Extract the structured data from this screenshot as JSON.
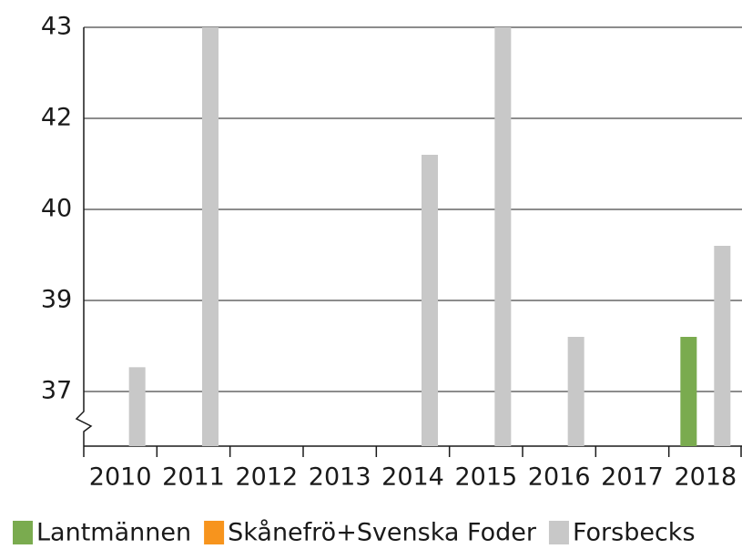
{
  "chart_data": {
    "type": "bar",
    "categories": [
      "2010",
      "2011",
      "2012",
      "2013",
      "2014",
      "2015",
      "2016",
      "2017",
      "2018"
    ],
    "series": [
      {
        "name": "Lantmännen",
        "color": "#7aab4f",
        "values": [
          null,
          null,
          null,
          null,
          null,
          null,
          null,
          null,
          37.9
        ]
      },
      {
        "name": "Skånefrö+Svenska Foder",
        "color": "#f7941d",
        "values": [
          null,
          null,
          null,
          null,
          null,
          null,
          null,
          null,
          null
        ]
      },
      {
        "name": "Forsbecks",
        "color": "#c8c8c8",
        "values": [
          37.4,
          43,
          null,
          null,
          40.9,
          43,
          37.9,
          null,
          39.4
        ]
      }
    ],
    "ylim": [
      36.1,
      43
    ],
    "yticks": [
      37,
      {
        "value": 38.5,
        "label": "39"
      },
      40,
      {
        "value": 41.5,
        "label": "42"
      },
      43
    ],
    "grid": true,
    "legend": "bottom"
  }
}
